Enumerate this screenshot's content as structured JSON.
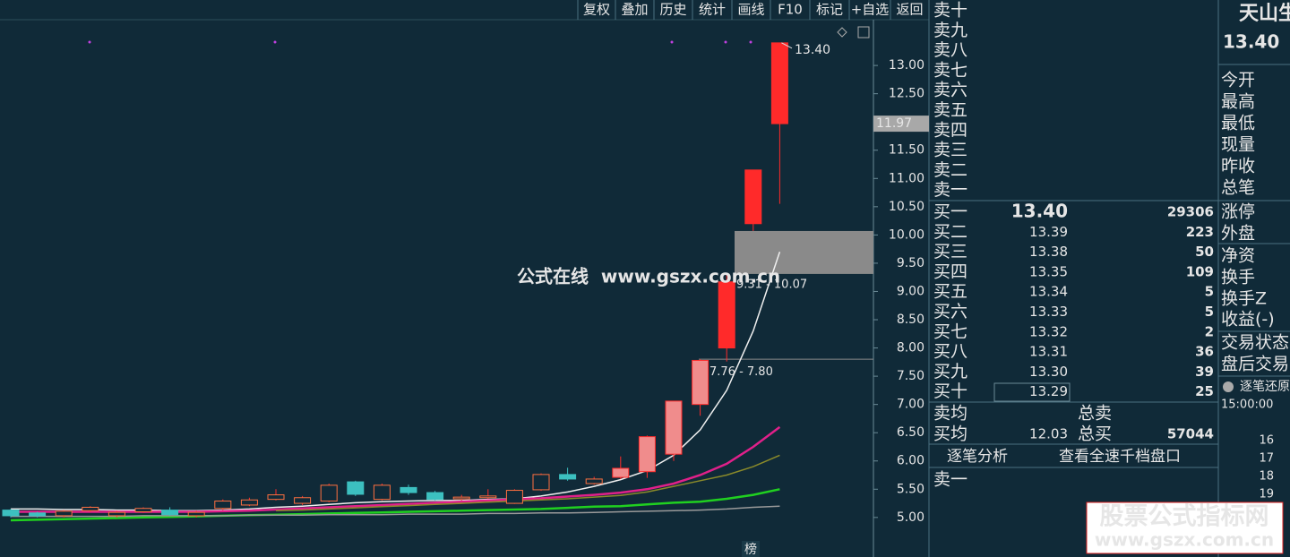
{
  "toolbar": [
    "复权",
    "叠加",
    "历史",
    "统计",
    "画线",
    "F10",
    "标记",
    "+自选",
    "返回"
  ],
  "chart_data": {
    "type": "candlestick",
    "ylim": [
      4.3,
      13.81
    ],
    "yticks": [
      {
        "value": 5,
        "label": "5.00"
      },
      {
        "value": 5.5,
        "label": "5.50"
      },
      {
        "value": 6,
        "label": "6.00"
      },
      {
        "value": 6.5,
        "label": "6.50"
      },
      {
        "value": 7,
        "label": "7.00"
      },
      {
        "value": 7.5,
        "label": "7.50"
      },
      {
        "value": 8,
        "label": "8.00"
      },
      {
        "value": 8.5,
        "label": "8.50"
      },
      {
        "value": 9,
        "label": "9.00"
      },
      {
        "value": 9.5,
        "label": "9.50"
      },
      {
        "value": 10,
        "label": "10.00"
      },
      {
        "value": 10.5,
        "label": "10.50"
      },
      {
        "value": 11,
        "label": "11.00"
      },
      {
        "value": 11.5,
        "label": "11.50"
      },
      {
        "value": 12,
        "label": "12.00"
      },
      {
        "value": 12.5,
        "label": "12.50"
      },
      {
        "value": 13,
        "label": "13.00"
      }
    ],
    "up_color": "#ff2a2a",
    "down_color": "#3cc0c0",
    "candles": {
      "open": [
        5.13,
        5.08,
        5.03,
        5.12,
        5.03,
        5.1,
        5.13,
        5.03,
        5.16,
        5.22,
        5.32,
        5.25,
        5.29,
        5.63,
        5.32,
        5.53,
        5.44,
        5.33,
        5.35,
        5.25,
        5.49,
        5.76,
        5.6,
        5.71,
        5.81,
        6.12,
        7.0,
        8.0,
        10.2,
        11.97
      ],
      "high": [
        5.15,
        5.1,
        5.13,
        5.2,
        5.12,
        5.18,
        5.18,
        5.12,
        5.32,
        5.35,
        5.5,
        5.38,
        5.6,
        5.65,
        5.6,
        5.58,
        5.47,
        5.4,
        5.5,
        5.5,
        5.78,
        5.88,
        5.72,
        6.08,
        6.45,
        7.06,
        7.8,
        9.31,
        11.15,
        13.4
      ],
      "low": [
        5.0,
        5.0,
        5.0,
        5.1,
        5.0,
        5.08,
        5.03,
        5.0,
        5.13,
        5.2,
        5.3,
        5.22,
        5.27,
        5.38,
        5.3,
        5.4,
        5.3,
        5.3,
        5.33,
        5.24,
        5.47,
        5.65,
        5.58,
        5.68,
        5.7,
        6.0,
        6.8,
        7.76,
        10.07,
        10.55
      ],
      "close": [
        5.03,
        5.03,
        5.11,
        5.18,
        5.09,
        5.16,
        5.05,
        5.09,
        5.29,
        5.31,
        5.4,
        5.35,
        5.57,
        5.41,
        5.57,
        5.44,
        5.32,
        5.36,
        5.38,
        5.48,
        5.76,
        5.68,
        5.68,
        5.87,
        6.43,
        7.06,
        7.78,
        9.17,
        11.15,
        13.4
      ]
    },
    "series": [
      {
        "color": "#f0f0f0",
        "values": [
          5.15,
          5.15,
          5.14,
          5.14,
          5.13,
          5.13,
          5.12,
          5.12,
          5.13,
          5.15,
          5.18,
          5.2,
          5.23,
          5.26,
          5.28,
          5.29,
          5.3,
          5.3,
          5.32,
          5.33,
          5.38,
          5.45,
          5.55,
          5.67,
          5.83,
          6.1,
          6.55,
          7.25,
          8.3,
          9.7
        ]
      },
      {
        "color": "#e0208a",
        "values": [
          5.1,
          5.1,
          5.1,
          5.1,
          5.1,
          5.1,
          5.1,
          5.1,
          5.11,
          5.12,
          5.14,
          5.16,
          5.18,
          5.2,
          5.22,
          5.24,
          5.26,
          5.28,
          5.3,
          5.32,
          5.34,
          5.37,
          5.4,
          5.44,
          5.5,
          5.6,
          5.75,
          5.95,
          6.25,
          6.6
        ]
      },
      {
        "color": "#8a8a2a",
        "values": [
          null,
          null,
          null,
          null,
          null,
          null,
          null,
          null,
          null,
          null,
          5.12,
          5.13,
          5.15,
          5.17,
          5.19,
          5.21,
          5.23,
          5.25,
          5.27,
          5.29,
          5.31,
          5.33,
          5.36,
          5.39,
          5.45,
          5.55,
          5.65,
          5.75,
          5.9,
          6.1
        ]
      },
      {
        "color": "#20d020",
        "values": [
          4.95,
          4.96,
          4.97,
          4.98,
          4.99,
          5.0,
          5.01,
          5.02,
          5.03,
          5.04,
          5.05,
          5.06,
          5.07,
          5.08,
          5.09,
          5.1,
          5.11,
          5.12,
          5.13,
          5.14,
          5.15,
          5.17,
          5.19,
          5.2,
          5.23,
          5.26,
          5.28,
          5.33,
          5.4,
          5.5
        ]
      },
      {
        "color": "#9a9a9a",
        "values": [
          5.02,
          5.02,
          5.02,
          5.02,
          5.02,
          5.03,
          5.03,
          5.03,
          5.03,
          5.04,
          5.04,
          5.04,
          5.05,
          5.05,
          5.05,
          5.06,
          5.06,
          5.06,
          5.07,
          5.07,
          5.08,
          5.08,
          5.09,
          5.1,
          5.11,
          5.12,
          5.13,
          5.15,
          5.18,
          5.2
        ]
      }
    ],
    "high_label": {
      "value": 13.4,
      "label": "13.40"
    },
    "gaps": [
      {
        "label": "9.31 - 10.07",
        "low": 9.31,
        "high": 10.07
      },
      {
        "label": "7.76 - 7.80",
        "low": 7.76,
        "high": 7.8
      }
    ],
    "price_marker": 11.97,
    "watermark": "公式在线  www.gszx.com.cn",
    "bottom_tag": "榜"
  },
  "order_book": {
    "sell_labels": [
      "卖十",
      "卖九",
      "卖八",
      "卖七",
      "卖六",
      "卖五",
      "卖四",
      "卖三",
      "卖二",
      "卖一"
    ],
    "buy": [
      {
        "label": "买一",
        "price": "13.40",
        "volume": 29306
      },
      {
        "label": "买二",
        "price": "13.39",
        "volume": 223
      },
      {
        "label": "买三",
        "price": "13.38",
        "volume": 50
      },
      {
        "label": "买四",
        "price": "13.35",
        "volume": 109
      },
      {
        "label": "买五",
        "price": "13.34",
        "volume": 5
      },
      {
        "label": "买六",
        "price": "13.33",
        "volume": 5
      },
      {
        "label": "买七",
        "price": "13.32",
        "volume": 2
      },
      {
        "label": "买八",
        "price": "13.31",
        "volume": 36
      },
      {
        "label": "买九",
        "price": "13.30",
        "volume": 39
      },
      {
        "label": "买十",
        "price": "13.29",
        "volume": 25
      }
    ],
    "sell_avg_label": "卖均",
    "total_sell_label": "总卖",
    "buy_avg_label": "买均",
    "buy_avg": "12.03",
    "total_buy_label": "总买",
    "total_buy": 57044,
    "links": [
      "逐笔分析",
      "查看全速千档盘口"
    ],
    "tail_label": "卖一"
  },
  "quote": {
    "name": "天山生",
    "price": "13.40",
    "fields": [
      "今开",
      "最高",
      "最低",
      "现量",
      "昨收",
      "总笔",
      "涨停",
      "外盘",
      "净资",
      "换手",
      "换手Z",
      "收益(-)",
      "交易状态",
      "盘后交易"
    ],
    "button": "逐笔还原",
    "time": "15:00:00",
    "rows": [
      "16",
      "17",
      "18",
      "19"
    ]
  },
  "banner": {
    "title": "股票公式指标网",
    "url": "www.gszx.com.cn"
  }
}
